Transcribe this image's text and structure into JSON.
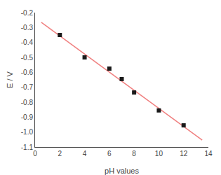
{
  "chart_data": {
    "type": "scatter",
    "xlabel": "pH values",
    "ylabel": "E / V",
    "series": [
      {
        "type": "line",
        "color": "#f08080",
        "line_style": "solid",
        "x": [
          0.5,
          13.5
        ],
        "values": [
          -0.2646428571,
          -1.0539285714
        ]
      },
      {
        "type": "scatter",
        "color": "#1a1a1a",
        "marker": "square",
        "x": [
          2,
          4,
          6,
          7,
          8,
          10,
          12
        ],
        "values": [
          -0.35,
          -0.5,
          -0.575,
          -0.645,
          -0.735,
          -0.855,
          -0.955
        ]
      }
    ],
    "xlim": [
      0,
      14
    ],
    "ylim": [
      -1.1,
      -0.2
    ],
    "xticks": [
      0,
      2,
      4,
      6,
      8,
      10,
      12,
      14
    ],
    "yticks": [
      -1.1,
      {
        "value": -1,
        "label": "-1.0"
      },
      -0.9,
      -0.8,
      -0.7,
      -0.6,
      -0.5,
      -0.4,
      -0.3,
      -0.2
    ],
    "grid": false
  }
}
